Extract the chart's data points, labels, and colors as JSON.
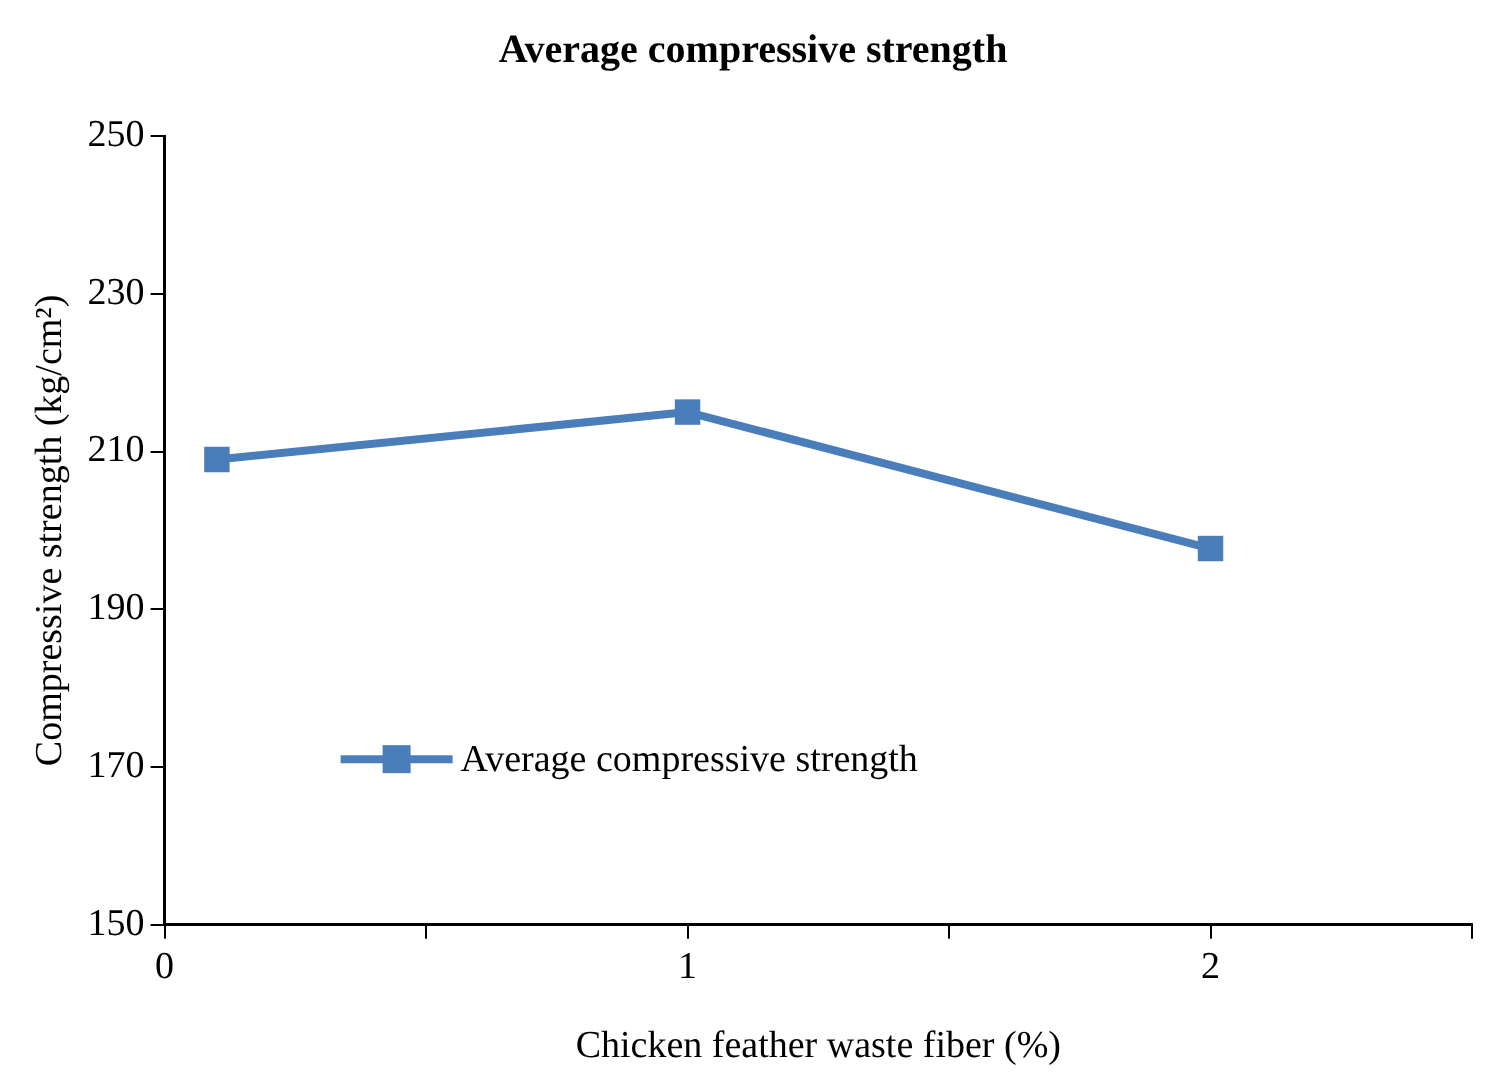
{
  "chart_data": {
    "type": "line",
    "title": "Average compressive strength",
    "xlabel": "Chicken feather waste fiber (%)",
    "ylabel": "Compressive strength (kg/cm²)",
    "x": [
      0.1,
      1,
      2
    ],
    "series": [
      {
        "name": "Average compressive strength",
        "color": "#4a7ebb",
        "values": [
          209,
          215,
          197.7
        ]
      }
    ],
    "xlim": [
      0,
      2.5
    ],
    "xticks": [
      0,
      {
        "value": 0.5,
        "label": null
      },
      1,
      {
        "value": 1.5,
        "label": null
      },
      2,
      {
        "value": 2.5,
        "label": null
      }
    ],
    "ylim": [
      150,
      250
    ],
    "yticks": [
      150,
      170,
      190,
      210,
      230,
      250
    ],
    "grid": false,
    "legend": "left",
    "marker": "square",
    "line_style": "solid"
  }
}
